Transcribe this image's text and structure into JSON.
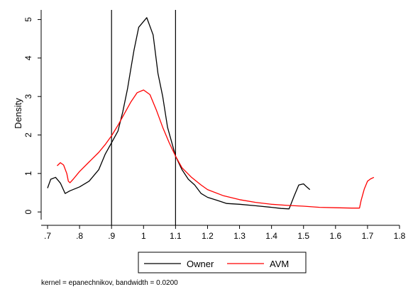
{
  "chart_data": {
    "type": "line",
    "xlabel": "",
    "ylabel": "Density",
    "xlim": [
      0.68,
      1.8
    ],
    "ylim": [
      0,
      5.2
    ],
    "x_ticks": [
      ".7",
      ".8",
      ".9",
      "1",
      "1.1",
      "1.2",
      "1.3",
      "1.4",
      "1.5",
      "1.6",
      "1.7",
      "1.8"
    ],
    "y_ticks": [
      "0",
      "1",
      "2",
      "3",
      "4",
      "5"
    ],
    "vlines": [
      0.9,
      1.1
    ],
    "grid": false,
    "legend_position": "bottom",
    "note": "kernel = epanechnikov, bandwidth = 0.0200",
    "series": [
      {
        "name": "Owner",
        "color": "#000000",
        "points": [
          [
            0.7,
            0.62
          ],
          [
            0.71,
            0.85
          ],
          [
            0.725,
            0.9
          ],
          [
            0.74,
            0.75
          ],
          [
            0.755,
            0.48
          ],
          [
            0.77,
            0.55
          ],
          [
            0.8,
            0.65
          ],
          [
            0.83,
            0.8
          ],
          [
            0.86,
            1.1
          ],
          [
            0.88,
            1.5
          ],
          [
            0.9,
            1.8
          ],
          [
            0.92,
            2.1
          ],
          [
            0.935,
            2.6
          ],
          [
            0.95,
            3.2
          ],
          [
            0.96,
            3.7
          ],
          [
            0.97,
            4.2
          ],
          [
            0.985,
            4.8
          ],
          [
            1.0,
            4.95
          ],
          [
            1.01,
            5.05
          ],
          [
            1.03,
            4.6
          ],
          [
            1.045,
            3.6
          ],
          [
            1.06,
            3.0
          ],
          [
            1.075,
            2.2
          ],
          [
            1.09,
            1.75
          ],
          [
            1.1,
            1.45
          ],
          [
            1.12,
            1.1
          ],
          [
            1.14,
            0.85
          ],
          [
            1.16,
            0.7
          ],
          [
            1.18,
            0.48
          ],
          [
            1.2,
            0.38
          ],
          [
            1.23,
            0.3
          ],
          [
            1.26,
            0.22
          ],
          [
            1.3,
            0.2
          ],
          [
            1.35,
            0.16
          ],
          [
            1.4,
            0.12
          ],
          [
            1.43,
            0.09
          ],
          [
            1.455,
            0.08
          ],
          [
            1.47,
            0.4
          ],
          [
            1.485,
            0.7
          ],
          [
            1.5,
            0.73
          ],
          [
            1.51,
            0.65
          ],
          [
            1.52,
            0.58
          ]
        ]
      },
      {
        "name": "AVM",
        "color": "#ff0000",
        "points": [
          [
            0.73,
            1.2
          ],
          [
            0.74,
            1.28
          ],
          [
            0.75,
            1.22
          ],
          [
            0.76,
            1.0
          ],
          [
            0.765,
            0.8
          ],
          [
            0.77,
            0.76
          ],
          [
            0.78,
            0.85
          ],
          [
            0.8,
            1.05
          ],
          [
            0.83,
            1.3
          ],
          [
            0.86,
            1.55
          ],
          [
            0.88,
            1.75
          ],
          [
            0.9,
            1.98
          ],
          [
            0.92,
            2.25
          ],
          [
            0.94,
            2.55
          ],
          [
            0.96,
            2.85
          ],
          [
            0.98,
            3.1
          ],
          [
            1.0,
            3.17
          ],
          [
            1.02,
            3.05
          ],
          [
            1.04,
            2.65
          ],
          [
            1.06,
            2.2
          ],
          [
            1.08,
            1.8
          ],
          [
            1.1,
            1.45
          ],
          [
            1.12,
            1.15
          ],
          [
            1.15,
            0.9
          ],
          [
            1.18,
            0.7
          ],
          [
            1.2,
            0.58
          ],
          [
            1.25,
            0.42
          ],
          [
            1.3,
            0.32
          ],
          [
            1.35,
            0.25
          ],
          [
            1.4,
            0.2
          ],
          [
            1.45,
            0.17
          ],
          [
            1.5,
            0.15
          ],
          [
            1.55,
            0.12
          ],
          [
            1.6,
            0.11
          ],
          [
            1.65,
            0.1
          ],
          [
            1.675,
            0.1
          ],
          [
            1.68,
            0.3
          ],
          [
            1.69,
            0.6
          ],
          [
            1.7,
            0.8
          ],
          [
            1.71,
            0.86
          ],
          [
            1.72,
            0.9
          ]
        ]
      }
    ]
  }
}
